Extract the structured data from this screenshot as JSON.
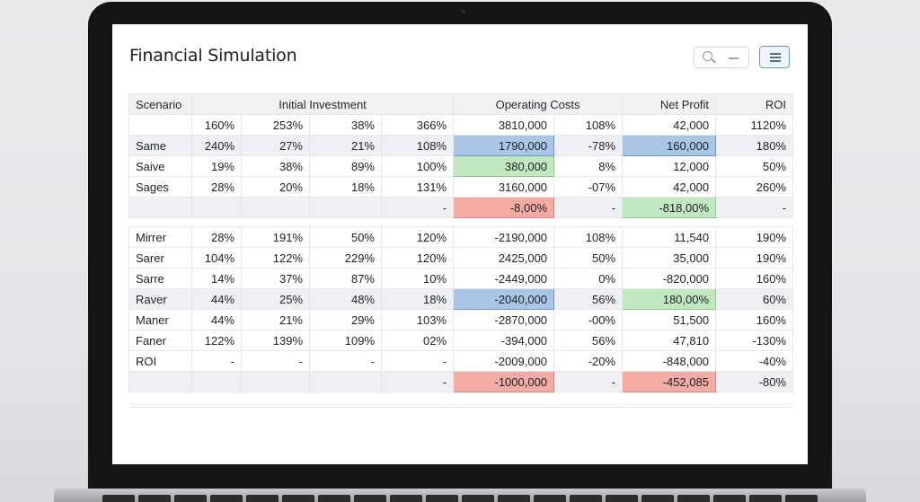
{
  "app": {
    "title": "Financial Simulation"
  },
  "toolbar": {
    "search_icon": "search-icon",
    "minus_icon": "minus-icon",
    "menu_icon": "hamburger-menu-icon"
  },
  "table": {
    "headers": [
      "Scenario",
      "Initial Investment",
      "",
      "",
      "",
      "Operating Costs",
      "",
      "Net Profit",
      "ROI"
    ],
    "rows": [
      {
        "cells": [
          "",
          "160%",
          "253%",
          "38%",
          "366%",
          "3810,000",
          "108%",
          "42,000",
          "1120%"
        ]
      },
      {
        "cells": [
          "Same",
          "240%",
          "27%",
          "21%",
          "108%",
          "1790,000",
          "-78%",
          "160,000",
          "180%"
        ]
      },
      {
        "cells": [
          "Saive",
          "19%",
          "38%",
          "89%",
          "100%",
          "380,000",
          "8%",
          "12,000",
          "50%"
        ]
      },
      {
        "cells": [
          "Sages",
          "28%",
          "20%",
          "18%",
          "131%",
          "3160,000",
          "-07%",
          "42,000",
          "260%"
        ]
      },
      {
        "cells": [
          "",
          "",
          "",
          "",
          "-",
          "-8,00%",
          "-",
          "-818,00%",
          "-"
        ]
      },
      {
        "cells": [
          "Mirrer",
          "28%",
          "191%",
          "50%",
          "120%",
          "-2190,000",
          "108%",
          "11,540",
          "190%"
        ]
      },
      {
        "cells": [
          "Sarer",
          "104%",
          "122%",
          "229%",
          "120%",
          "2425,000",
          "50%",
          "35,000",
          "190%"
        ]
      },
      {
        "cells": [
          "Sarre",
          "14%",
          "37%",
          "87%",
          "10%",
          "-2449,000",
          "0%",
          "-820,000",
          "160%"
        ]
      },
      {
        "cells": [
          "Raver",
          "44%",
          "25%",
          "48%",
          "18%",
          "-2040,000",
          "56%",
          "180,00%",
          "60%"
        ]
      },
      {
        "cells": [
          "Maner",
          "44%",
          "21%",
          "29%",
          "103%",
          "-2870,000",
          "-00%",
          "51,500",
          "160%"
        ]
      },
      {
        "cells": [
          "Faner",
          "122%",
          "139%",
          "109%",
          "02%",
          "-394,000",
          "56%",
          "47,810",
          "-130%"
        ]
      },
      {
        "cells": [
          "ROI",
          "-",
          "-",
          "-",
          "-",
          "-2009,000",
          "-20%",
          "-848,000",
          "-40%"
        ]
      },
      {
        "cells": [
          "",
          "",
          "",
          "",
          "-",
          "-1000,000",
          "-",
          "-452,085",
          "-80%"
        ]
      }
    ]
  },
  "colors": {
    "highlight_blue": "#a9c6e6",
    "highlight_green": "#c2e8bf",
    "highlight_red": "#f4aba4",
    "menu_accent": "#6d9ed4"
  }
}
